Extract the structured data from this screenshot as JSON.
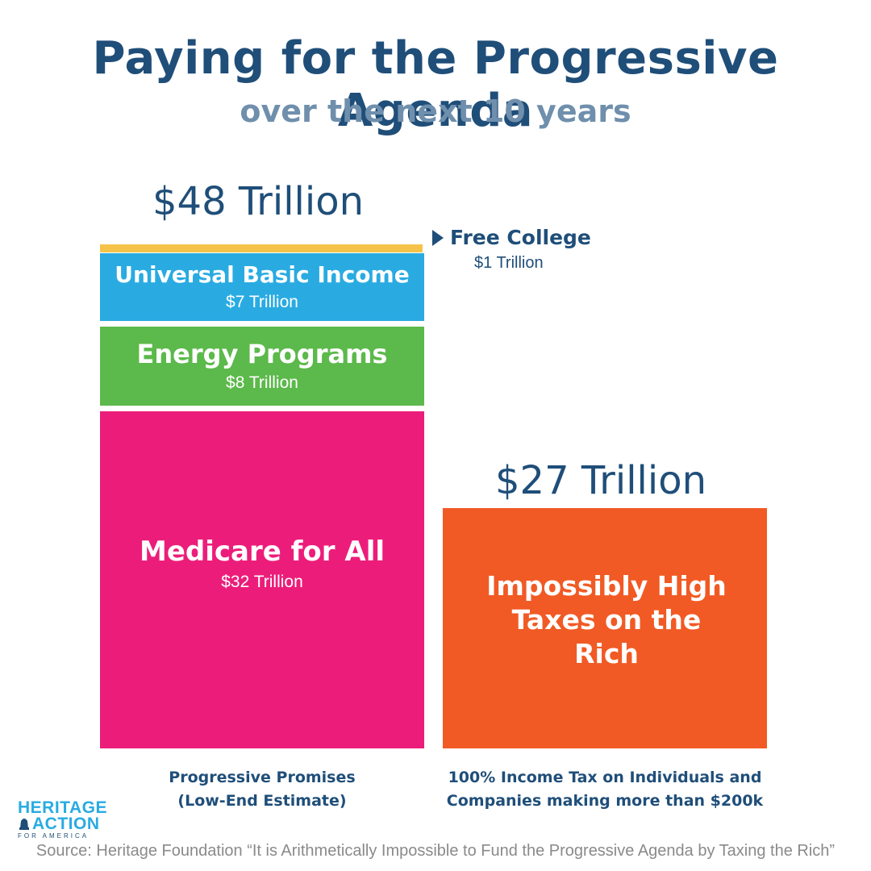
{
  "title": "Paying for the Progressive Agenda",
  "subtitle": "over the next 10 years",
  "colors": {
    "title": "#1f4e79",
    "subtitle": "#6f8fac",
    "free_college": "#f6c34a",
    "ubi": "#29abe2",
    "energy": "#5cb94b",
    "medicare": "#ec1d7a",
    "taxes": "#f15a24",
    "logo": "#29abe2"
  },
  "chart_data": {
    "type": "bar",
    "categories": [
      "Progressive Promises (Low-End Estimate)",
      "100% Income Tax on Individuals and Companies making more than $200k"
    ],
    "unit": "Trillion $",
    "totals": [
      "$48 Trillion",
      "$27 Trillion"
    ],
    "bars": [
      {
        "category": "Progressive Promises (Low-End Estimate)",
        "total": 48,
        "total_label": "$48 Trillion",
        "segments": [
          {
            "name": "Medicare for All",
            "value": 32,
            "value_label": "$32 Trillion",
            "color": "#ec1d7a"
          },
          {
            "name": "Energy Programs",
            "value": 8,
            "value_label": "$8 Trillion",
            "color": "#5cb94b"
          },
          {
            "name": "Universal Basic Income",
            "value": 7,
            "value_label": "$7 Trillion",
            "color": "#29abe2"
          },
          {
            "name": "Free College",
            "value": 1,
            "value_label": "$1 Trillion",
            "color": "#f6c34a"
          }
        ]
      },
      {
        "category": "100% Income Tax on Individuals and Companies making more than $200k",
        "total": 27,
        "total_label": "$27 Trillion",
        "segments": [
          {
            "name_lines": [
              "Impossibly High",
              "Taxes on the Rich"
            ],
            "value": 27,
            "color": "#f15a24"
          }
        ]
      }
    ],
    "category_labels": [
      [
        "Progressive Promises",
        "(Low-End Estimate)"
      ],
      [
        "100% Income Tax on Individuals and",
        "Companies making more than $200k"
      ]
    ]
  },
  "logo": {
    "line1": "HERITAGE",
    "line2": "ACTION",
    "line3": "FOR AMERICA"
  },
  "source": "Source: Heritage Foundation “It is Arithmetically Impossible to Fund the Progressive Agenda by Taxing the Rich”"
}
